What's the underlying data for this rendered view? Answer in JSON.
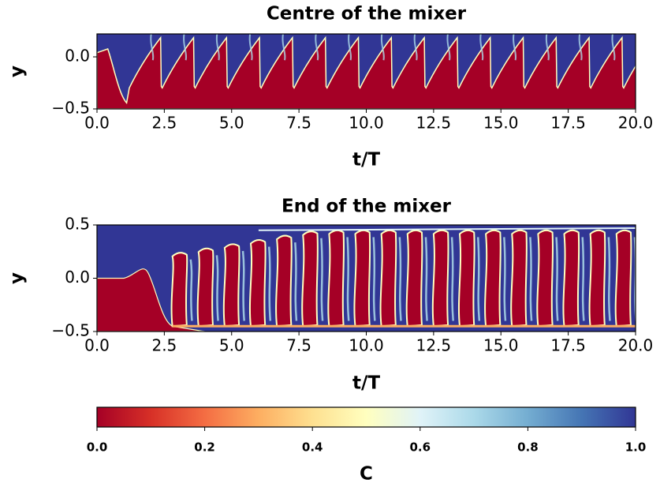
{
  "chart_data": [
    {
      "type": "heatmap",
      "title": "Centre of the mixer",
      "xlabel": "t/T",
      "ylabel": "y",
      "xlim": [
        0,
        20
      ],
      "ylim": [
        -0.5,
        0.22
      ],
      "xticks": [
        {
          "value": 0,
          "label": "0.0"
        },
        2.5,
        {
          "value": 5,
          "label": "5.0"
        },
        7.5,
        {
          "value": 10,
          "label": "10.0"
        },
        12.5,
        {
          "value": 15,
          "label": "15.0"
        },
        17.5,
        {
          "value": 20,
          "label": "20.0"
        }
      ],
      "yticks": [
        {
          "value": -0.5,
          "label": "−0.5"
        },
        {
          "value": 0,
          "label": "0.0"
        }
      ]
    },
    {
      "type": "heatmap",
      "title": "End of the mixer",
      "xlabel": "t/T",
      "ylabel": "y",
      "xlim": [
        0,
        20
      ],
      "ylim": [
        -0.5,
        0.5
      ],
      "xticks": [
        {
          "value": 0,
          "label": "0.0"
        },
        2.5,
        {
          "value": 5,
          "label": "5.0"
        },
        7.5,
        {
          "value": 10,
          "label": "10.0"
        },
        12.5,
        {
          "value": 15,
          "label": "15.0"
        },
        17.5,
        {
          "value": 20,
          "label": "20.0"
        }
      ],
      "yticks": [
        {
          "value": -0.5,
          "label": "−0.5"
        },
        {
          "value": 0,
          "label": "0.0"
        },
        0.5
      ]
    },
    {
      "type": "colorbar",
      "label": "C",
      "clim": [
        0,
        1
      ],
      "ticks": [
        {
          "value": 0,
          "label": "0.0"
        },
        0.2,
        0.4,
        0.6,
        0.8,
        {
          "value": 1,
          "label": "1.0"
        }
      ],
      "colormap": [
        "#a50026",
        "#d73027",
        "#f46d43",
        "#fdae61",
        "#fee090",
        "#ffffbf",
        "#e0f3f8",
        "#abd9e9",
        "#74add1",
        "#4575b4",
        "#313695"
      ]
    }
  ]
}
